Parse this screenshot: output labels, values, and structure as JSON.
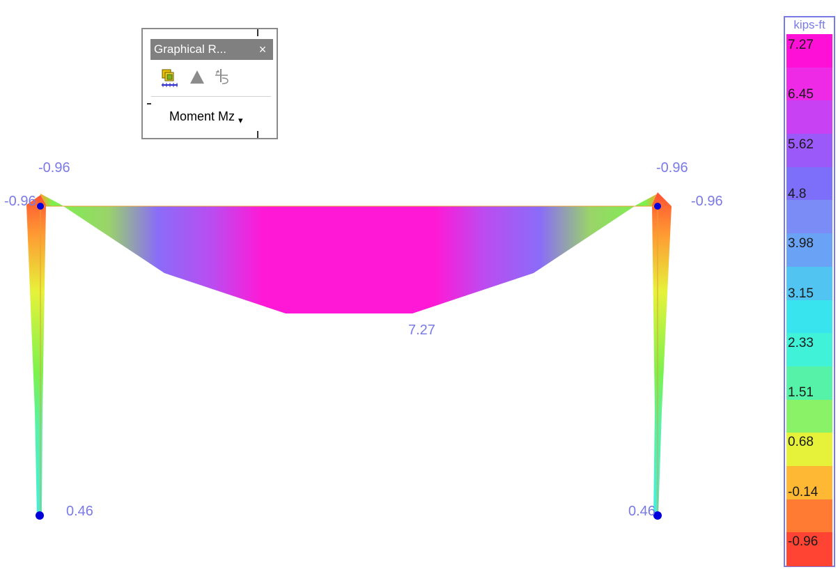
{
  "palette": {
    "title": "Graphical R...",
    "close_glyph": "×",
    "tools": [
      {
        "name": "member-results-icon"
      },
      {
        "name": "plate-results-icon"
      },
      {
        "name": "support-reactions-icon"
      }
    ],
    "dropdown": {
      "value": "Moment Mz",
      "arrow_glyph": "▾"
    }
  },
  "diagram": {
    "labels": {
      "left_top": "-0.96",
      "left_joint": "-0.96",
      "right_top": "-0.96",
      "right_joint": "-0.96",
      "midspan": "7.27",
      "left_base": "0.46",
      "right_base": "0.46"
    },
    "colors": {
      "max": "#ff19d6",
      "purple": "#8a6cf8",
      "green": "#7cf24d",
      "orange": "#ff9933",
      "red": "#ff5533",
      "cyan": "#44eedd",
      "support": "#0000dd"
    }
  },
  "legend": {
    "unit": "kips-ft",
    "ticks": [
      "7.27",
      "6.45",
      "5.62",
      "4.8",
      "3.98",
      "3.15",
      "2.33",
      "1.51",
      "0.68",
      "-0.14",
      "-0.96"
    ],
    "colors": [
      "#ff10d6",
      "#ef2ae6",
      "#c841f3",
      "#9a59f8",
      "#7d6ff9",
      "#7b8cf7",
      "#6aa3f5",
      "#52c4f2",
      "#38e4ee",
      "#3ff2d8",
      "#55f2a8",
      "#8af266",
      "#e6f23a",
      "#ffb833",
      "#ff7a33",
      "#ff4433"
    ]
  }
}
